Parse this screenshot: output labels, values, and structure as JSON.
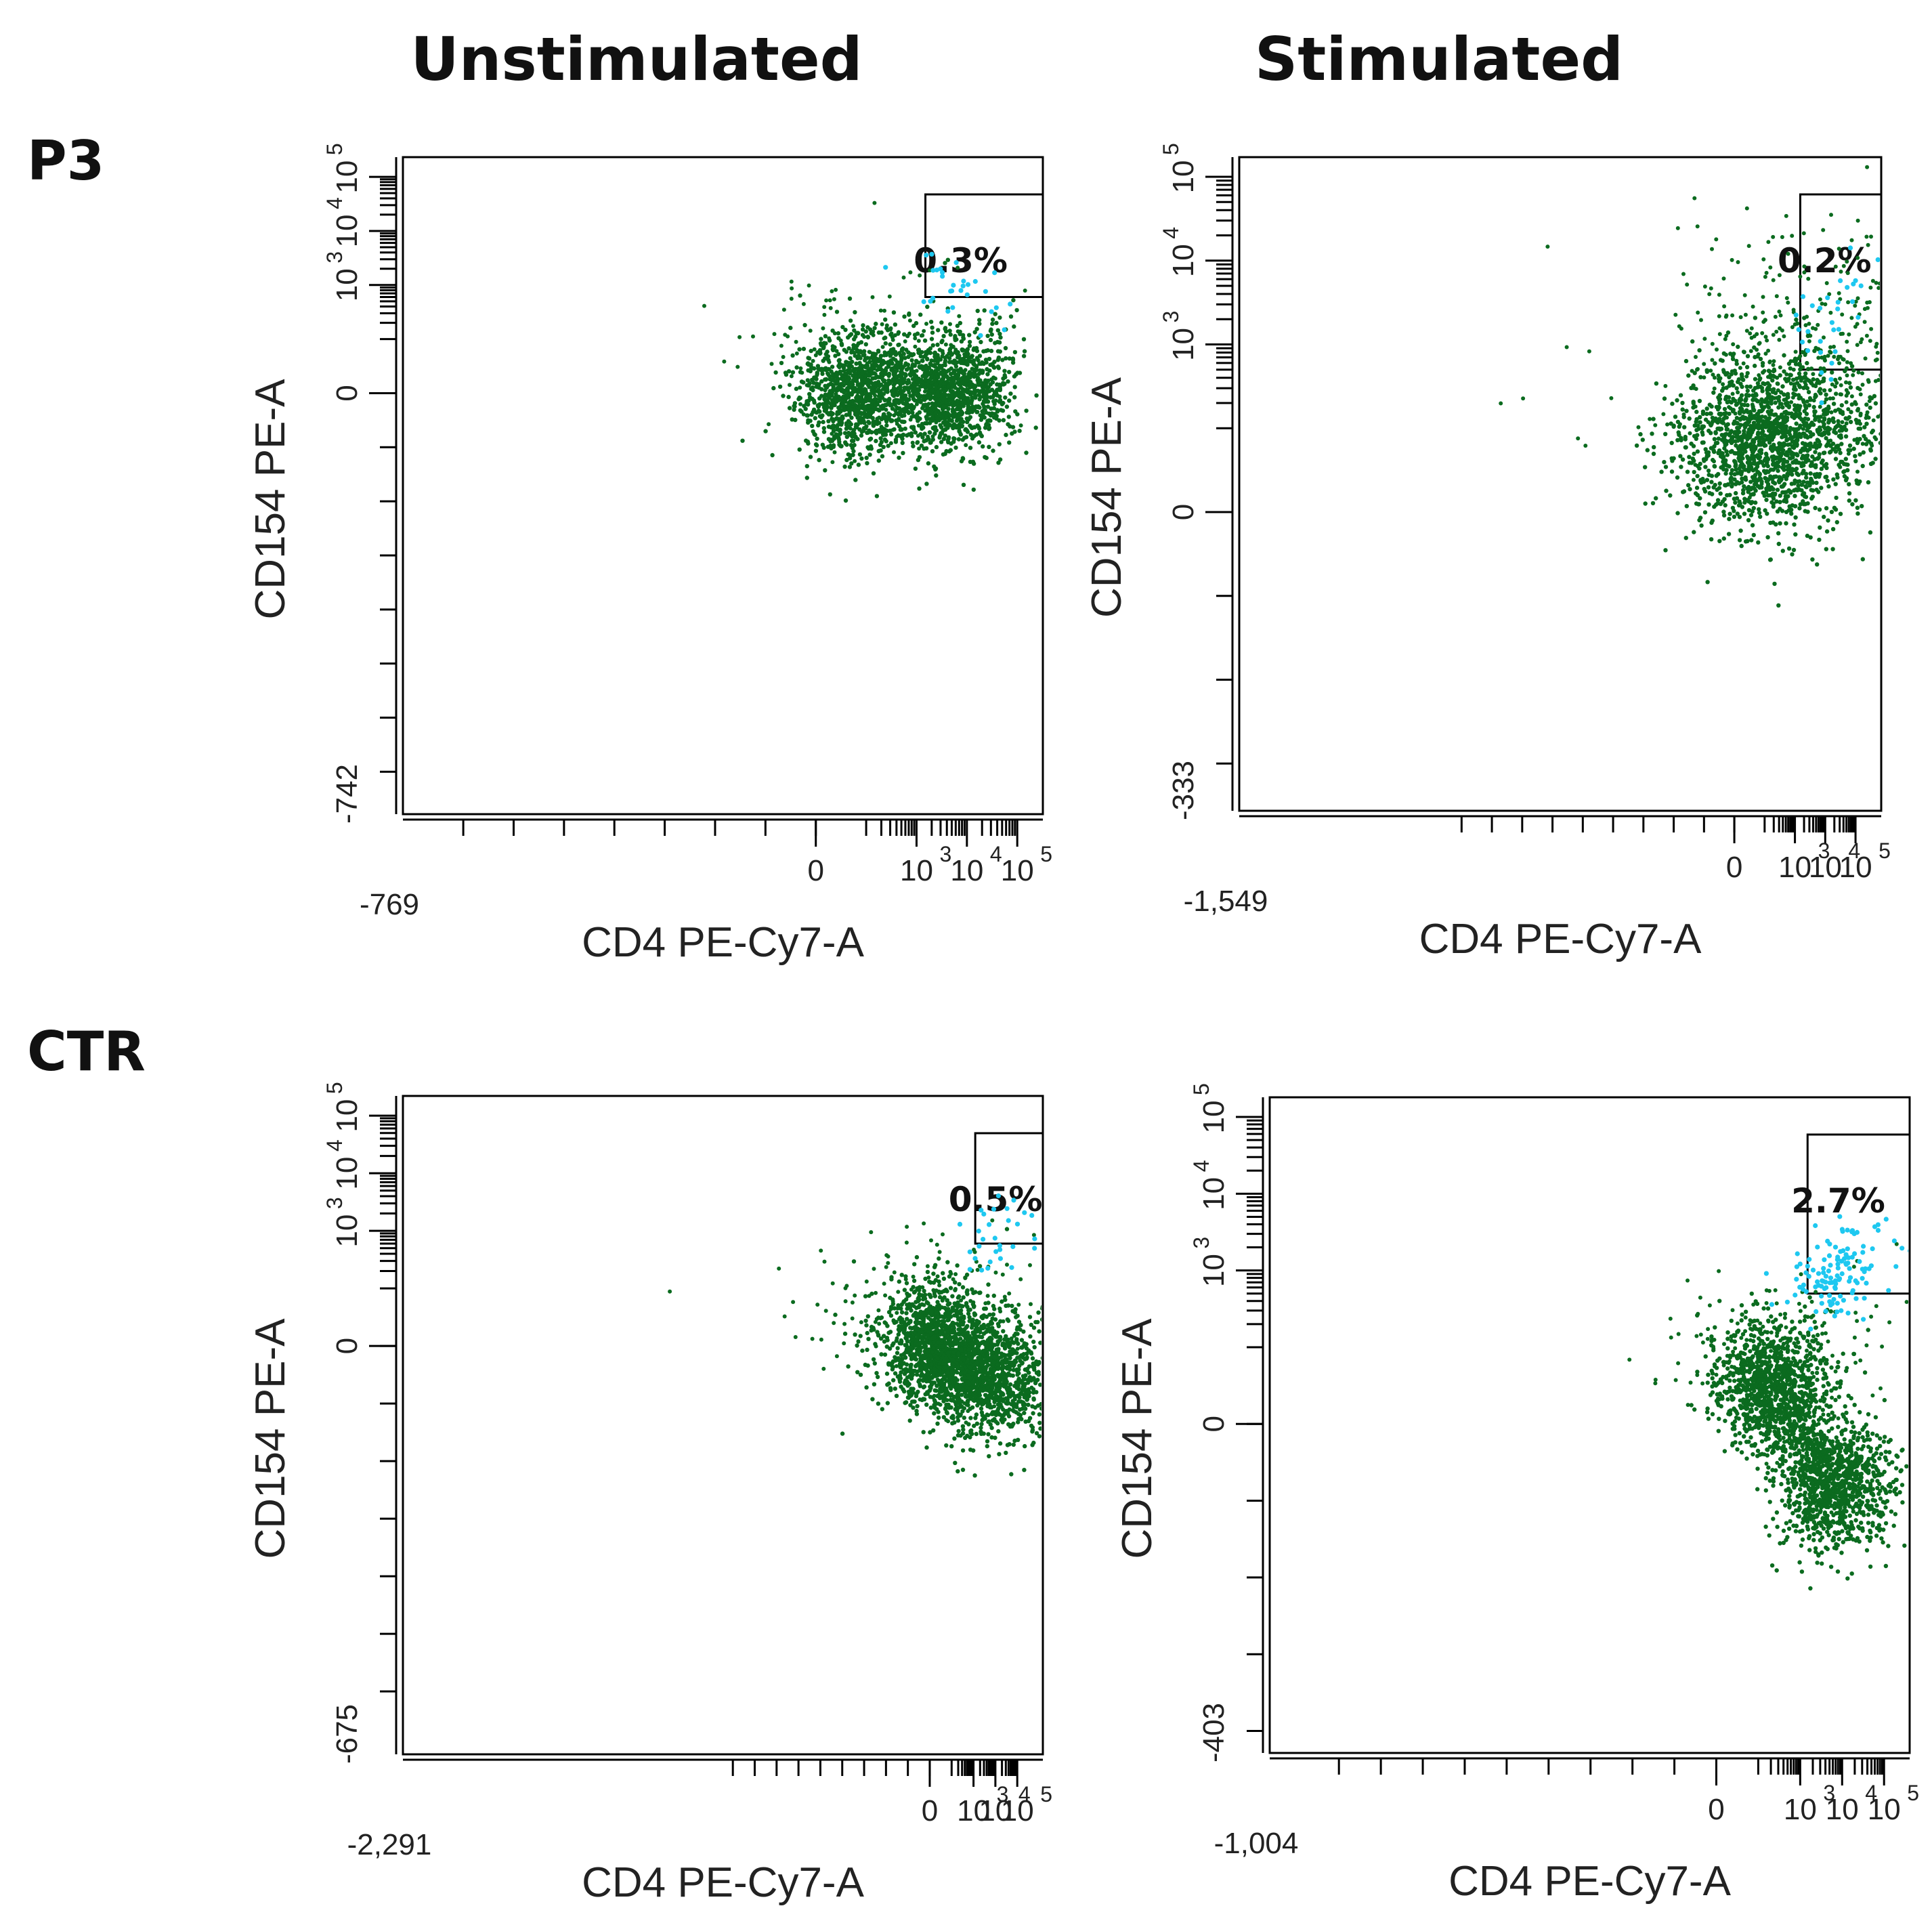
{
  "figure": {
    "column_titles": [
      "Unstimulated",
      "Stimulated"
    ],
    "row_labels": [
      "P3",
      "CTR"
    ]
  },
  "colors": {
    "background": "#ffffff",
    "ungated_events": "#0b6b1f",
    "gated_events": "#1ec8f0",
    "axes": "#000000"
  },
  "chart_data": [
    {
      "type": "scatter",
      "row": "P3",
      "condition": "Unstimulated",
      "xlabel": "CD4 PE-Cy7-A",
      "ylabel": "CD154 PE-A",
      "x_scale": "biexponential",
      "y_scale": "biexponential",
      "xlim": [
        -769,
        100000
      ],
      "ylim": [
        -742,
        100000
      ],
      "x_min_label": "-769",
      "y_min_label": "-742",
      "x_ticks": [
        {
          "base": "0",
          "exp": ""
        },
        {
          "base": "10",
          "exp": "3"
        },
        {
          "base": "10",
          "exp": "4"
        },
        {
          "base": "10",
          "exp": "5"
        }
      ],
      "y_ticks": [
        {
          "base": "0",
          "exp": ""
        },
        {
          "base": "10",
          "exp": "3"
        },
        {
          "base": "10",
          "exp": "4"
        },
        {
          "base": "10",
          "exp": "5"
        }
      ],
      "gate": {
        "x_min": 1500,
        "y_min": 600,
        "percent_label": "0.3%",
        "percent": 0.3
      },
      "populations": [
        {
          "name": "",
          "x": 80,
          "y": 0
        },
        {
          "name": "",
          "x": 6000,
          "y": 0
        }
      ]
    },
    {
      "type": "scatter",
      "row": "P3",
      "condition": "Stimulated",
      "xlabel": "CD4 PE-Cy7-A",
      "ylabel": "CD154 PE-A",
      "x_scale": "biexponential",
      "y_scale": "biexponential",
      "xlim": [
        -1549,
        100000
      ],
      "ylim": [
        -333,
        100000
      ],
      "x_min_label": "-1,549",
      "y_min_label": "-333",
      "x_ticks": [
        {
          "base": "0",
          "exp": ""
        },
        {
          "base": "10",
          "exp": "3"
        },
        {
          "base": "10",
          "exp": "4"
        },
        {
          "base": "10",
          "exp": "5"
        }
      ],
      "y_ticks": [
        {
          "base": "0",
          "exp": ""
        },
        {
          "base": "10",
          "exp": "3"
        },
        {
          "base": "10",
          "exp": "4"
        },
        {
          "base": "10",
          "exp": "5"
        }
      ],
      "gate": {
        "x_min": 1500,
        "y_min": 500,
        "percent_label": "0.2%",
        "percent": 0.2
      },
      "populations": [
        {
          "name": "",
          "x": 150,
          "y": 80
        }
      ]
    },
    {
      "type": "scatter",
      "row": "CTR",
      "condition": "Unstimulated",
      "xlabel": "CD4 PE-Cy7-A",
      "ylabel": "CD154 PE-A",
      "x_scale": "biexponential",
      "y_scale": "biexponential",
      "xlim": [
        -2291,
        100000
      ],
      "ylim": [
        -675,
        100000
      ],
      "x_min_label": "-2,291",
      "y_min_label": "-675",
      "x_ticks": [
        {
          "base": "0",
          "exp": ""
        },
        {
          "base": "10",
          "exp": "3"
        },
        {
          "base": "10",
          "exp": "4"
        },
        {
          "base": "10",
          "exp": "5"
        }
      ],
      "y_ticks": [
        {
          "base": "0",
          "exp": ""
        },
        {
          "base": "10",
          "exp": "3"
        },
        {
          "base": "10",
          "exp": "4"
        },
        {
          "base": "10",
          "exp": "5"
        }
      ],
      "gate": {
        "x_min": 1200,
        "y_min": 600,
        "percent_label": "0.5%",
        "percent": 0.5
      },
      "populations": [
        {
          "name": "",
          "x": 0,
          "y": 0
        },
        {
          "name": "",
          "x": 5500,
          "y": -50
        }
      ]
    },
    {
      "type": "scatter",
      "row": "CTR",
      "condition": "Stimulated",
      "xlabel": "CD4 PE-Cy7-A",
      "ylabel": "CD154 PE-A",
      "x_scale": "biexponential",
      "y_scale": "biexponential",
      "xlim": [
        -1004,
        100000
      ],
      "ylim": [
        -403,
        100000
      ],
      "x_min_label": "-1,004",
      "y_min_label": "-403",
      "x_ticks": [
        {
          "base": "0",
          "exp": ""
        },
        {
          "base": "10",
          "exp": "3"
        },
        {
          "base": "10",
          "exp": "4"
        },
        {
          "base": "10",
          "exp": "5"
        }
      ],
      "y_ticks": [
        {
          "base": "0",
          "exp": ""
        },
        {
          "base": "10",
          "exp": "3"
        },
        {
          "base": "10",
          "exp": "4"
        },
        {
          "base": "10",
          "exp": "5"
        }
      ],
      "gate": {
        "x_min": 1500,
        "y_min": 500,
        "percent_label": "2.7%",
        "percent": 2.7
      },
      "populations": [
        {
          "name": "",
          "x": 200,
          "y": 50
        },
        {
          "name": "",
          "x": 7000,
          "y": -80
        }
      ]
    }
  ]
}
